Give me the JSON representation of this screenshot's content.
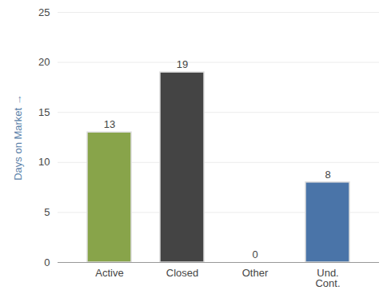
{
  "chart_data": {
    "type": "bar",
    "categories": [
      "Active",
      "Closed",
      "Other",
      "Und.\nCont."
    ],
    "values": [
      13,
      19,
      0,
      8
    ],
    "colors": [
      "#88a44a",
      "#444444",
      "#888888",
      "#4a74a8"
    ],
    "ylabel": "Days on Market",
    "ylim": [
      0,
      25
    ],
    "yticks": [
      0,
      5,
      10,
      15,
      20,
      25
    ],
    "grid": true,
    "data_labels": true
  }
}
